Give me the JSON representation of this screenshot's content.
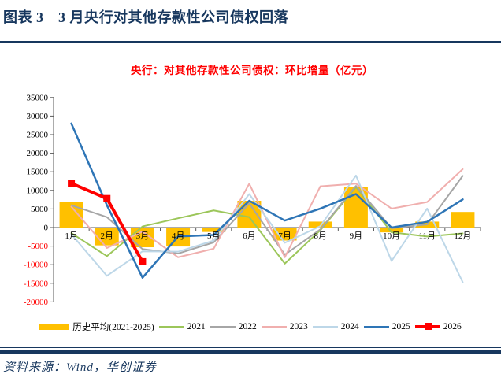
{
  "header": {
    "title": "图表 3　3 月央行对其他存款性公司债权回落"
  },
  "colors": {
    "accent_navy": "#17375E",
    "chart_title_red": "#FF0000",
    "negative_tick_red": "#FF0000",
    "positive_tick_black": "#000000",
    "axis_gray": "#595959",
    "bar_yellow": "#FFC000"
  },
  "chart_data": {
    "type": "combo",
    "title": "央行：对其他存款性公司债权：环比增量（亿元）",
    "categories": [
      "1月",
      "2月",
      "3月",
      "4月",
      "5月",
      "6月",
      "7月",
      "8月",
      "9月",
      "10月",
      "11月",
      "12月"
    ],
    "y_axis": {
      "min": -20000,
      "max": 35000,
      "step": 5000
    },
    "grid": "off",
    "legend_position": "bottom",
    "series": [
      {
        "name": "历史平均(2021-2025)",
        "type": "bar",
        "color": "#FFC000",
        "values": [
          6800,
          -4800,
          -5300,
          -5100,
          -1200,
          7200,
          -3500,
          1600,
          10900,
          -1300,
          1600,
          4200
        ]
      },
      {
        "name": "2021",
        "type": "line",
        "color": "#9CC65A",
        "width": 2,
        "values": [
          -1500,
          -7700,
          300,
          2500,
          4600,
          2800,
          -9700,
          -700,
          10900,
          -1300,
          -2400,
          -1600
        ]
      },
      {
        "name": "2022",
        "type": "line",
        "color": "#A6A6A6",
        "width": 2,
        "values": [
          6000,
          2800,
          -5800,
          -7000,
          -4000,
          6500,
          -7300,
          -500,
          11200,
          -200,
          850,
          13900
        ]
      },
      {
        "name": "2023",
        "type": "line",
        "color": "#F0AFAE",
        "width": 2,
        "values": [
          5600,
          -5500,
          -1100,
          -8000,
          -5700,
          11800,
          -8000,
          11100,
          11800,
          5100,
          6850,
          15700
        ]
      },
      {
        "name": "2024",
        "type": "line",
        "color": "#BDD7E8",
        "width": 2,
        "values": [
          -1800,
          -13000,
          -6400,
          -6500,
          -3500,
          9000,
          -4100,
          400,
          14000,
          -9000,
          5100,
          -14700
        ]
      },
      {
        "name": "2025",
        "type": "line",
        "color": "#2E75B6",
        "width": 2.5,
        "values": [
          28000,
          6000,
          -13500,
          -2400,
          -2000,
          7200,
          1900,
          5100,
          9000,
          0,
          1550,
          7560
        ]
      },
      {
        "name": "2026",
        "type": "line",
        "color": "#FF0000",
        "width": 4,
        "marker": "square",
        "values": [
          11900,
          7800,
          -9200,
          null,
          null,
          null,
          null,
          null,
          null,
          null,
          null,
          null
        ]
      }
    ]
  },
  "footer": {
    "source": "资料来源：Wind，华创证券"
  }
}
